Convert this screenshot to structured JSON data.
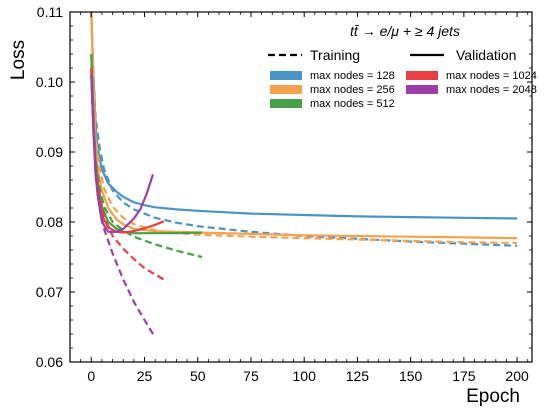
{
  "chart_data": {
    "type": "line",
    "title": "tt̄ → e/μ + ≥ 4 jets",
    "xlabel": "Epoch",
    "ylabel": "Loss",
    "xlim": [
      -10,
      207
    ],
    "ylim": [
      0.06,
      0.11
    ],
    "xticks": [
      "0",
      "25",
      "50",
      "75",
      "100",
      "125",
      "150",
      "175",
      "200"
    ],
    "yticks": [
      "0.06",
      "0.07",
      "0.08",
      "0.09",
      "0.10",
      "0.11"
    ],
    "legend_style": {
      "training": "Training",
      "validation": "Validation"
    },
    "legend_placement": "top-right",
    "grid": false,
    "series": [
      {
        "name": "max nodes = 128",
        "color": "#4a93c4",
        "training": [
          [
            0,
            0.11
          ],
          [
            1,
            0.101
          ],
          [
            2,
            0.095
          ],
          [
            4,
            0.0905
          ],
          [
            6,
            0.0875
          ],
          [
            10,
            0.0845
          ],
          [
            15,
            0.0828
          ],
          [
            20,
            0.0818
          ],
          [
            30,
            0.0806
          ],
          [
            40,
            0.0799
          ],
          [
            50,
            0.0794
          ],
          [
            75,
            0.0786
          ],
          [
            100,
            0.078
          ],
          [
            125,
            0.0776
          ],
          [
            150,
            0.0772
          ],
          [
            175,
            0.0769
          ],
          [
            200,
            0.0766
          ]
        ],
        "validation": [
          [
            0,
            0.11
          ],
          [
            1,
            0.101
          ],
          [
            2,
            0.094
          ],
          [
            3,
            0.0905
          ],
          [
            5,
            0.0875
          ],
          [
            8,
            0.0855
          ],
          [
            12,
            0.0843
          ],
          [
            15,
            0.0836
          ],
          [
            20,
            0.0828
          ],
          [
            25,
            0.0824
          ],
          [
            30,
            0.0821
          ],
          [
            40,
            0.0818
          ],
          [
            50,
            0.0816
          ],
          [
            75,
            0.0812
          ],
          [
            100,
            0.081
          ],
          [
            125,
            0.0808
          ],
          [
            150,
            0.0807
          ],
          [
            175,
            0.0806
          ],
          [
            200,
            0.0805
          ]
        ]
      },
      {
        "name": "max nodes = 256",
        "color": "#f5a24e",
        "training": [
          [
            0,
            0.11
          ],
          [
            1,
            0.1
          ],
          [
            2,
            0.092
          ],
          [
            4,
            0.0875
          ],
          [
            6,
            0.0848
          ],
          [
            10,
            0.0822
          ],
          [
            15,
            0.0806
          ],
          [
            20,
            0.0797
          ],
          [
            30,
            0.0788
          ],
          [
            40,
            0.0784
          ],
          [
            50,
            0.0782
          ],
          [
            75,
            0.0779
          ],
          [
            100,
            0.0777
          ],
          [
            125,
            0.0775
          ],
          [
            150,
            0.0773
          ],
          [
            175,
            0.0771
          ],
          [
            200,
            0.077
          ]
        ],
        "validation": [
          [
            0,
            0.11
          ],
          [
            1,
            0.1
          ],
          [
            2,
            0.092
          ],
          [
            3,
            0.0875
          ],
          [
            5,
            0.0845
          ],
          [
            8,
            0.082
          ],
          [
            12,
            0.0803
          ],
          [
            15,
            0.0797
          ],
          [
            20,
            0.079
          ],
          [
            30,
            0.0787
          ],
          [
            40,
            0.0786
          ],
          [
            50,
            0.0785
          ],
          [
            75,
            0.0783
          ],
          [
            100,
            0.0781
          ],
          [
            125,
            0.078
          ],
          [
            150,
            0.0779
          ],
          [
            175,
            0.0778
          ],
          [
            200,
            0.0777
          ]
        ]
      },
      {
        "name": "max nodes = 512",
        "color": "#46a046",
        "training": [
          [
            0,
            0.104
          ],
          [
            1,
            0.095
          ],
          [
            2,
            0.089
          ],
          [
            4,
            0.0848
          ],
          [
            6,
            0.0822
          ],
          [
            10,
            0.08
          ],
          [
            15,
            0.0788
          ],
          [
            20,
            0.0779
          ],
          [
            30,
            0.0768
          ],
          [
            40,
            0.0759
          ],
          [
            52,
            0.075
          ]
        ],
        "validation": [
          [
            0,
            0.104
          ],
          [
            1,
            0.095
          ],
          [
            2,
            0.089
          ],
          [
            3,
            0.0858
          ],
          [
            5,
            0.0822
          ],
          [
            8,
            0.08
          ],
          [
            12,
            0.079
          ],
          [
            15,
            0.0786
          ],
          [
            20,
            0.0784
          ],
          [
            30,
            0.0784
          ],
          [
            40,
            0.0784
          ],
          [
            52,
            0.0785
          ]
        ]
      },
      {
        "name": "max nodes = 1024",
        "color": "#e84042",
        "training": [
          [
            0,
            0.102
          ],
          [
            1,
            0.094
          ],
          [
            2,
            0.088
          ],
          [
            4,
            0.0835
          ],
          [
            6,
            0.0808
          ],
          [
            10,
            0.078
          ],
          [
            15,
            0.0762
          ],
          [
            20,
            0.0747
          ],
          [
            25,
            0.0734
          ],
          [
            30,
            0.0725
          ],
          [
            34,
            0.0718
          ]
        ],
        "validation": [
          [
            0,
            0.102
          ],
          [
            1,
            0.094
          ],
          [
            2,
            0.088
          ],
          [
            3,
            0.0845
          ],
          [
            5,
            0.081
          ],
          [
            8,
            0.0792
          ],
          [
            12,
            0.0786
          ],
          [
            15,
            0.0785
          ],
          [
            20,
            0.0787
          ],
          [
            25,
            0.0791
          ],
          [
            30,
            0.0796
          ],
          [
            34,
            0.0801
          ]
        ]
      },
      {
        "name": "max nodes = 2048",
        "color": "#9b3ea8",
        "training": [
          [
            0,
            0.101
          ],
          [
            1,
            0.093
          ],
          [
            2,
            0.087
          ],
          [
            4,
            0.082
          ],
          [
            6,
            0.079
          ],
          [
            10,
            0.0755
          ],
          [
            15,
            0.0718
          ],
          [
            20,
            0.0686
          ],
          [
            25,
            0.066
          ],
          [
            29,
            0.064
          ]
        ],
        "validation": [
          [
            0,
            0.101
          ],
          [
            1,
            0.093
          ],
          [
            2,
            0.087
          ],
          [
            3,
            0.0838
          ],
          [
            5,
            0.08
          ],
          [
            8,
            0.0786
          ],
          [
            12,
            0.0786
          ],
          [
            15,
            0.079
          ],
          [
            20,
            0.0805
          ],
          [
            23,
            0.0818
          ],
          [
            26,
            0.084
          ],
          [
            29,
            0.0868
          ]
        ]
      }
    ]
  }
}
